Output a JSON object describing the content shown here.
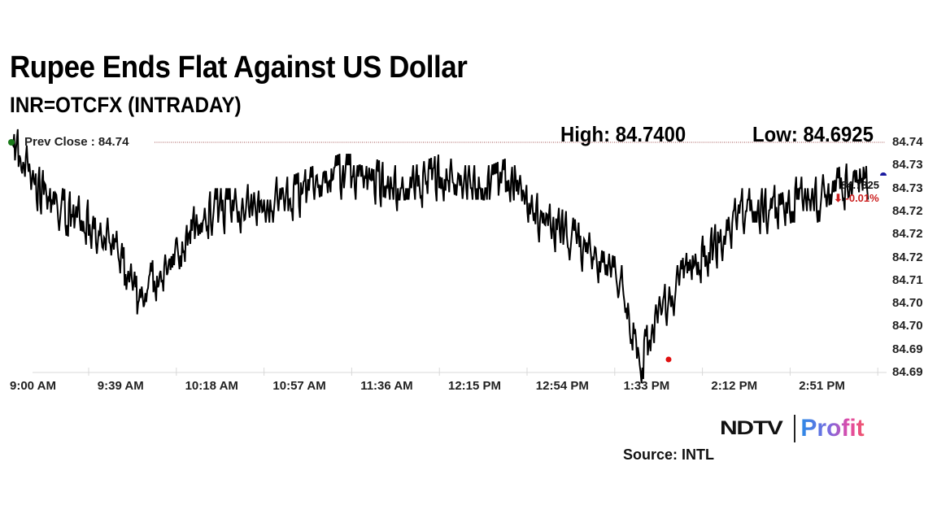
{
  "header": {
    "title": "Rupee Ends Flat Against US Dollar",
    "subtitle": "INR=OTCFX (INTRADAY)",
    "high_label": "High: 84.7400",
    "low_label": "Low: 84.6925"
  },
  "annotations": {
    "prev_close": "Prev Close : 84.74",
    "last_value": "84.7325",
    "last_change": "⬇ -0.01%"
  },
  "y_axis": {
    "labels": [
      "84.74",
      "84.73",
      "84.73",
      "84.72",
      "84.72",
      "84.72",
      "84.71",
      "84.70",
      "84.70",
      "84.69",
      "84.69"
    ]
  },
  "x_axis": {
    "labels": [
      "9:00 AM",
      "9:39 AM",
      "10:18 AM",
      "10:57 AM",
      "11:36 AM",
      "12:15 PM",
      "12:54 PM",
      "1:33 PM",
      "2:12 PM",
      "2:51 PM"
    ]
  },
  "footer": {
    "brand_left": "NDTV",
    "brand_right": "Profit",
    "source": "Source: INTL"
  },
  "colors": {
    "line": "#000000",
    "prev_close_marker": "#1a7a1a",
    "low_marker": "#e01010",
    "last_marker": "#1a1aa0",
    "negative": "#cc1f1f",
    "prev_close_line": "#a05050"
  },
  "chart_data": {
    "type": "line",
    "title": "Rupee Ends Flat Against US Dollar",
    "subtitle": "INR=OTCFX (INTRADAY)",
    "xlabel": "",
    "ylabel": "",
    "x": [
      "9:00 AM",
      "9:10 AM",
      "9:20 AM",
      "9:30 AM",
      "9:39 AM",
      "9:45 AM",
      "9:55 AM",
      "10:05 AM",
      "10:18 AM",
      "10:30 AM",
      "10:45 AM",
      "10:57 AM",
      "11:10 AM",
      "11:25 AM",
      "11:36 AM",
      "11:50 AM",
      "12:05 PM",
      "12:15 PM",
      "12:30 PM",
      "12:45 PM",
      "12:54 PM",
      "1:05 PM",
      "1:15 PM",
      "1:25 PM",
      "1:33 PM",
      "1:40 PM",
      "1:45 PM",
      "1:55 PM",
      "2:05 PM",
      "2:12 PM",
      "2:25 PM",
      "2:40 PM",
      "2:51 PM",
      "3:00 PM",
      "3:10 PM"
    ],
    "values": [
      84.74,
      84.73,
      84.725,
      84.7225,
      84.7175,
      84.705,
      84.7125,
      84.72,
      84.725,
      84.725,
      84.7275,
      84.7275,
      84.73,
      84.7325,
      84.7325,
      84.73,
      84.73,
      84.7325,
      84.73,
      84.73,
      84.7325,
      84.7225,
      84.72,
      84.715,
      84.7125,
      84.6925,
      84.705,
      84.7125,
      84.7175,
      84.725,
      84.725,
      84.7275,
      84.7275,
      84.73,
      84.7325
    ],
    "prev_close": 84.74,
    "high": 84.74,
    "low": 84.6925,
    "last": 84.7325,
    "change_pct": -0.01,
    "y_tick_labels": [
      "84.74",
      "84.73",
      "84.73",
      "84.72",
      "84.72",
      "84.72",
      "84.71",
      "84.70",
      "84.70",
      "84.69",
      "84.69"
    ],
    "x_tick_labels": [
      "9:00 AM",
      "9:39 AM",
      "10:18 AM",
      "10:57 AM",
      "11:36 AM",
      "12:15 PM",
      "12:54 PM",
      "1:33 PM",
      "2:12 PM",
      "2:51 PM"
    ],
    "ylim": [
      84.69,
      84.74
    ],
    "grid": false,
    "legend": "none"
  }
}
